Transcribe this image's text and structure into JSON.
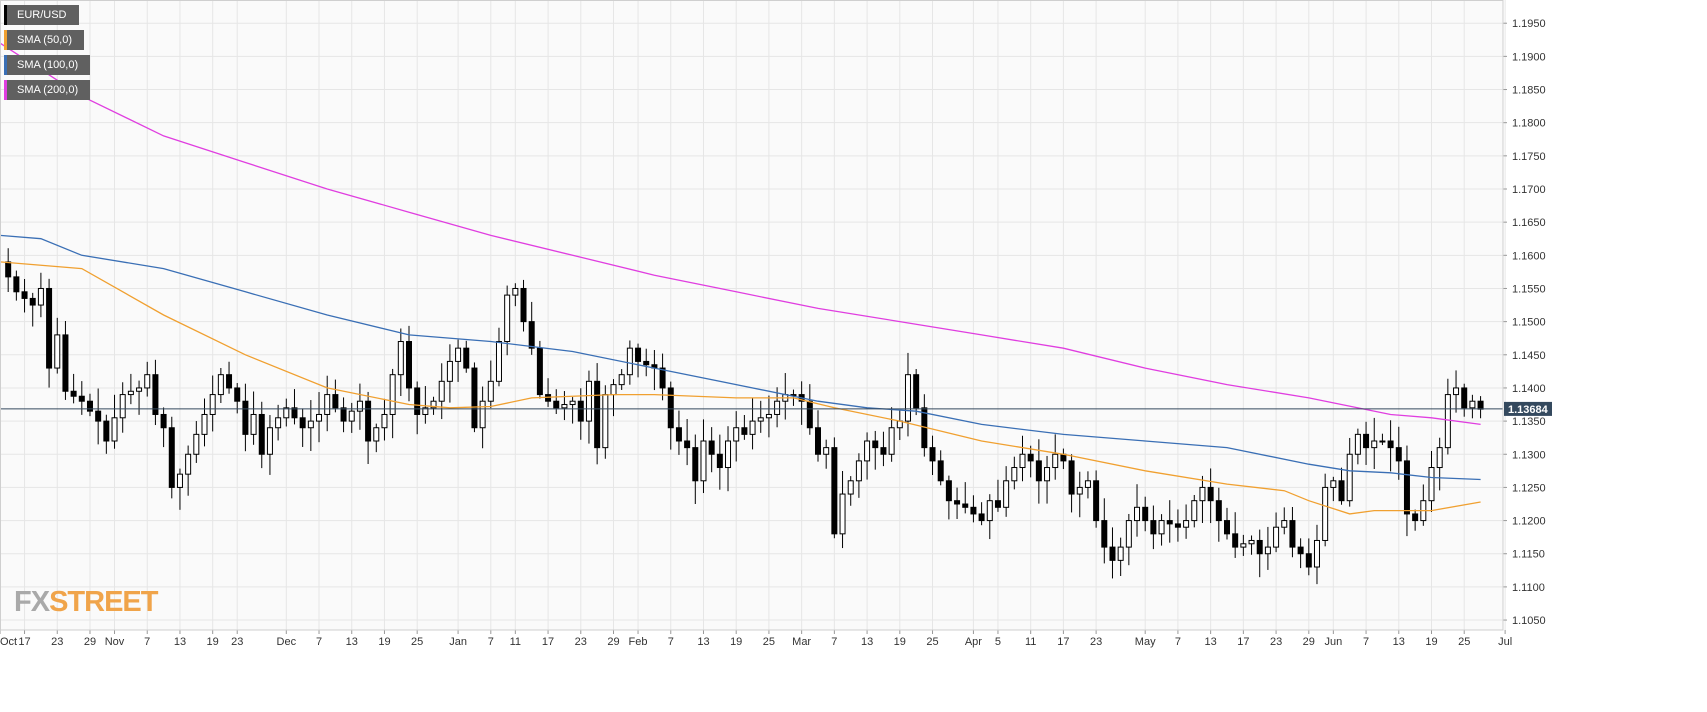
{
  "chart_data": {
    "type": "candlestick",
    "symbol": "EUR/USD",
    "ylim": [
      1.1035,
      1.1985
    ],
    "y_ticks": [
      "1.1950",
      "1.1900",
      "1.1850",
      "1.1800",
      "1.1750",
      "1.1700",
      "1.1650",
      "1.1600",
      "1.1550",
      "1.1500",
      "1.1450",
      "1.1400",
      "1.1350",
      "1.1300",
      "1.1250",
      "1.1200",
      "1.1150",
      "1.1100",
      "1.1050"
    ],
    "x_ticks": [
      {
        "label": "Oct",
        "i": 0
      },
      {
        "label": "17",
        "i": 3
      },
      {
        "label": "23",
        "i": 7
      },
      {
        "label": "29",
        "i": 11
      },
      {
        "label": "Nov",
        "i": 14
      },
      {
        "label": "7",
        "i": 18
      },
      {
        "label": "13",
        "i": 22
      },
      {
        "label": "19",
        "i": 26
      },
      {
        "label": "23",
        "i": 29
      },
      {
        "label": "Dec",
        "i": 35
      },
      {
        "label": "7",
        "i": 39
      },
      {
        "label": "13",
        "i": 43
      },
      {
        "label": "19",
        "i": 47
      },
      {
        "label": "25",
        "i": 51
      },
      {
        "label": "Jan",
        "i": 56
      },
      {
        "label": "7",
        "i": 60
      },
      {
        "label": "11",
        "i": 63
      },
      {
        "label": "17",
        "i": 67
      },
      {
        "label": "23",
        "i": 71
      },
      {
        "label": "29",
        "i": 75
      },
      {
        "label": "Feb",
        "i": 78
      },
      {
        "label": "7",
        "i": 82
      },
      {
        "label": "13",
        "i": 86
      },
      {
        "label": "19",
        "i": 90
      },
      {
        "label": "25",
        "i": 94
      },
      {
        "label": "Mar",
        "i": 98
      },
      {
        "label": "7",
        "i": 102
      },
      {
        "label": "13",
        "i": 106
      },
      {
        "label": "19",
        "i": 110
      },
      {
        "label": "25",
        "i": 114
      },
      {
        "label": "Apr",
        "i": 119
      },
      {
        "label": "5",
        "i": 122
      },
      {
        "label": "11",
        "i": 126
      },
      {
        "label": "17",
        "i": 130
      },
      {
        "label": "23",
        "i": 134
      },
      {
        "label": "May",
        "i": 140
      },
      {
        "label": "7",
        "i": 144
      },
      {
        "label": "13",
        "i": 148
      },
      {
        "label": "17",
        "i": 152
      },
      {
        "label": "23",
        "i": 156
      },
      {
        "label": "29",
        "i": 160
      },
      {
        "label": "Jun",
        "i": 163
      },
      {
        "label": "7",
        "i": 167
      },
      {
        "label": "13",
        "i": 171
      },
      {
        "label": "19",
        "i": 175
      },
      {
        "label": "25",
        "i": 179
      },
      {
        "label": "Jul",
        "i": 184
      }
    ],
    "anchors": [
      [
        0,
        1.159
      ],
      [
        2,
        1.1545
      ],
      [
        4,
        1.1525
      ],
      [
        5,
        1.155
      ],
      [
        6,
        1.143
      ],
      [
        7,
        1.148
      ],
      [
        8,
        1.1395
      ],
      [
        10,
        1.138
      ],
      [
        12,
        1.135
      ],
      [
        13,
        1.132
      ],
      [
        15,
        1.139
      ],
      [
        17,
        1.14
      ],
      [
        18,
        1.142
      ],
      [
        19,
        1.136
      ],
      [
        20,
        1.134
      ],
      [
        21,
        1.125
      ],
      [
        22,
        1.127
      ],
      [
        24,
        1.133
      ],
      [
        26,
        1.139
      ],
      [
        27,
        1.142
      ],
      [
        29,
        1.138
      ],
      [
        30,
        1.133
      ],
      [
        31,
        1.136
      ],
      [
        32,
        1.13
      ],
      [
        33,
        1.134
      ],
      [
        35,
        1.137
      ],
      [
        37,
        1.134
      ],
      [
        39,
        1.136
      ],
      [
        40,
        1.139
      ],
      [
        42,
        1.135
      ],
      [
        44,
        1.138
      ],
      [
        45,
        1.132
      ],
      [
        47,
        1.136
      ],
      [
        48,
        1.142
      ],
      [
        49,
        1.147
      ],
      [
        50,
        1.14
      ],
      [
        51,
        1.136
      ],
      [
        53,
        1.138
      ],
      [
        55,
        1.144
      ],
      [
        56,
        1.146
      ],
      [
        57,
        1.143
      ],
      [
        58,
        1.134
      ],
      [
        59,
        1.138
      ],
      [
        60,
        1.141
      ],
      [
        61,
        1.147
      ],
      [
        62,
        1.154
      ],
      [
        63,
        1.155
      ],
      [
        64,
        1.15
      ],
      [
        65,
        1.146
      ],
      [
        66,
        1.139
      ],
      [
        67,
        1.138
      ],
      [
        68,
        1.137
      ],
      [
        70,
        1.138
      ],
      [
        71,
        1.135
      ],
      [
        72,
        1.141
      ],
      [
        73,
        1.131
      ],
      [
        74,
        1.139
      ],
      [
        76,
        1.142
      ],
      [
        77,
        1.146
      ],
      [
        78,
        1.144
      ],
      [
        80,
        1.143
      ],
      [
        81,
        1.14
      ],
      [
        82,
        1.134
      ],
      [
        83,
        1.132
      ],
      [
        84,
        1.131
      ],
      [
        85,
        1.126
      ],
      [
        86,
        1.132
      ],
      [
        87,
        1.13
      ],
      [
        88,
        1.128
      ],
      [
        89,
        1.132
      ],
      [
        90,
        1.134
      ],
      [
        91,
        1.133
      ],
      [
        92,
        1.135
      ],
      [
        94,
        1.136
      ],
      [
        95,
        1.138
      ],
      [
        96,
        1.139
      ],
      [
        97,
        1.139
      ],
      [
        98,
        1.138
      ],
      [
        99,
        1.134
      ],
      [
        100,
        1.13
      ],
      [
        101,
        1.131
      ],
      [
        102,
        1.118
      ],
      [
        103,
        1.124
      ],
      [
        104,
        1.126
      ],
      [
        105,
        1.129
      ],
      [
        106,
        1.132
      ],
      [
        108,
        1.13
      ],
      [
        109,
        1.134
      ],
      [
        110,
        1.135
      ],
      [
        111,
        1.142
      ],
      [
        112,
        1.137
      ],
      [
        113,
        1.131
      ],
      [
        114,
        1.129
      ],
      [
        115,
        1.126
      ],
      [
        116,
        1.123
      ],
      [
        118,
        1.122
      ],
      [
        119,
        1.121
      ],
      [
        120,
        1.12
      ],
      [
        121,
        1.123
      ],
      [
        122,
        1.122
      ],
      [
        123,
        1.126
      ],
      [
        124,
        1.128
      ],
      [
        125,
        1.13
      ],
      [
        126,
        1.129
      ],
      [
        127,
        1.126
      ],
      [
        129,
        1.13
      ],
      [
        130,
        1.129
      ],
      [
        131,
        1.124
      ],
      [
        132,
        1.125
      ],
      [
        133,
        1.126
      ],
      [
        134,
        1.12
      ],
      [
        135,
        1.116
      ],
      [
        136,
        1.114
      ],
      [
        137,
        1.116
      ],
      [
        138,
        1.12
      ],
      [
        139,
        1.122
      ],
      [
        140,
        1.12
      ],
      [
        141,
        1.118
      ],
      [
        142,
        1.12
      ],
      [
        144,
        1.119
      ],
      [
        145,
        1.12
      ],
      [
        146,
        1.123
      ],
      [
        147,
        1.125
      ],
      [
        148,
        1.123
      ],
      [
        149,
        1.12
      ],
      [
        150,
        1.118
      ],
      [
        151,
        1.116
      ],
      [
        153,
        1.117
      ],
      [
        154,
        1.115
      ],
      [
        155,
        1.116
      ],
      [
        156,
        1.119
      ],
      [
        157,
        1.12
      ],
      [
        158,
        1.116
      ],
      [
        159,
        1.115
      ],
      [
        160,
        1.113
      ],
      [
        161,
        1.117
      ],
      [
        162,
        1.125
      ],
      [
        163,
        1.126
      ],
      [
        164,
        1.123
      ],
      [
        165,
        1.13
      ],
      [
        166,
        1.133
      ],
      [
        167,
        1.131
      ],
      [
        168,
        1.132
      ],
      [
        169,
        1.132
      ],
      [
        170,
        1.131
      ],
      [
        171,
        1.129
      ],
      [
        172,
        1.121
      ],
      [
        173,
        1.12
      ],
      [
        174,
        1.123
      ],
      [
        175,
        1.128
      ],
      [
        176,
        1.131
      ],
      [
        177,
        1.139
      ],
      [
        178,
        1.14
      ],
      [
        179,
        1.137
      ],
      [
        180,
        1.138
      ],
      [
        181,
        1.1368
      ]
    ],
    "sma50": [
      [
        0,
        1.159
      ],
      [
        10,
        1.158
      ],
      [
        20,
        1.151
      ],
      [
        30,
        1.145
      ],
      [
        40,
        1.14
      ],
      [
        50,
        1.1375
      ],
      [
        55,
        1.137
      ],
      [
        60,
        1.1372
      ],
      [
        65,
        1.1385
      ],
      [
        75,
        1.139
      ],
      [
        80,
        1.139
      ],
      [
        90,
        1.1385
      ],
      [
        97,
        1.1385
      ],
      [
        102,
        1.137
      ],
      [
        110,
        1.135
      ],
      [
        120,
        1.132
      ],
      [
        130,
        1.13
      ],
      [
        140,
        1.1275
      ],
      [
        150,
        1.1255
      ],
      [
        157,
        1.1245
      ],
      [
        160,
        1.123
      ],
      [
        165,
        1.121
      ],
      [
        168,
        1.1215
      ],
      [
        175,
        1.1215
      ],
      [
        181,
        1.1228
      ]
    ],
    "sma100": [
      [
        0,
        1.163
      ],
      [
        5,
        1.1625
      ],
      [
        10,
        1.16
      ],
      [
        20,
        1.158
      ],
      [
        30,
        1.1545
      ],
      [
        40,
        1.151
      ],
      [
        50,
        1.148
      ],
      [
        60,
        1.147
      ],
      [
        70,
        1.1455
      ],
      [
        80,
        1.143
      ],
      [
        90,
        1.1405
      ],
      [
        100,
        1.138
      ],
      [
        106,
        1.137
      ],
      [
        112,
        1.1365
      ],
      [
        120,
        1.1345
      ],
      [
        130,
        1.133
      ],
      [
        140,
        1.132
      ],
      [
        150,
        1.131
      ],
      [
        160,
        1.1285
      ],
      [
        165,
        1.1275
      ],
      [
        170,
        1.1272
      ],
      [
        175,
        1.1265
      ],
      [
        181,
        1.1262
      ]
    ],
    "sma200": [
      [
        0,
        1.192
      ],
      [
        5,
        1.188
      ],
      [
        10,
        1.184
      ],
      [
        20,
        1.178
      ],
      [
        30,
        1.174
      ],
      [
        40,
        1.17
      ],
      [
        50,
        1.1665
      ],
      [
        60,
        1.163
      ],
      [
        70,
        1.16
      ],
      [
        80,
        1.157
      ],
      [
        90,
        1.1545
      ],
      [
        100,
        1.152
      ],
      [
        110,
        1.15
      ],
      [
        120,
        1.148
      ],
      [
        130,
        1.146
      ],
      [
        140,
        1.143
      ],
      [
        150,
        1.1405
      ],
      [
        160,
        1.1385
      ],
      [
        170,
        1.136
      ],
      [
        175,
        1.1355
      ],
      [
        181,
        1.1345
      ]
    ],
    "current_price": "1.13684",
    "legend": [
      {
        "label": "EUR/USD",
        "color": "#000000"
      },
      {
        "label": "SMA (50,0)",
        "color": "#f0a030"
      },
      {
        "label": "SMA (100,0)",
        "color": "#3a6fb5"
      },
      {
        "label": "SMA (200,0)",
        "color": "#e03ee0"
      }
    ],
    "colors": {
      "up": "#ffffff",
      "down": "#000000",
      "sma50": "#f0a030",
      "sma100": "#3a6fb5",
      "sma200": "#e03ee0",
      "grid": "#e6e6e6",
      "price_line": "#34495e"
    },
    "grid": true
  },
  "watermark": {
    "part1": "FX",
    "part2": "STREET"
  }
}
